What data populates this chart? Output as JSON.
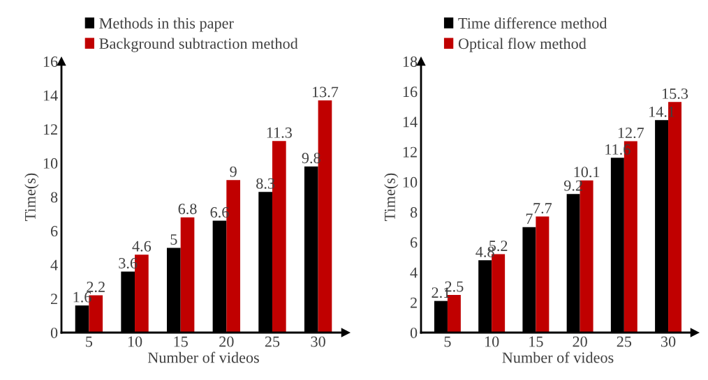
{
  "chart_data": [
    {
      "type": "bar",
      "xlabel": "Number of videos",
      "ylabel": "Time(s)",
      "categories": [
        "5",
        "10",
        "15",
        "20",
        "25",
        "30"
      ],
      "series": [
        {
          "name": "Methods in this paper",
          "color": "#000000",
          "values": [
            1.6,
            3.6,
            5,
            6.6,
            8.3,
            9.8
          ]
        },
        {
          "name": "Background subtraction method",
          "color": "#c00000",
          "values": [
            2.2,
            4.6,
            6.8,
            9,
            11.3,
            13.7
          ]
        }
      ],
      "ylim": [
        0,
        16
      ],
      "yticks": [
        0,
        2,
        4,
        6,
        8,
        10,
        12,
        14,
        16
      ],
      "data_labels": true,
      "legend": "top left",
      "grid": false
    },
    {
      "type": "bar",
      "xlabel": "Number of videos",
      "ylabel": "Time(s)",
      "categories": [
        "5",
        "10",
        "15",
        "20",
        "25",
        "30"
      ],
      "series": [
        {
          "name": "Time difference method",
          "color": "#000000",
          "values": [
            2.1,
            4.8,
            7,
            9.2,
            11.6,
            14.1
          ]
        },
        {
          "name": "Optical flow method",
          "color": "#c00000",
          "values": [
            2.5,
            5.2,
            7.7,
            10.1,
            12.7,
            15.3
          ]
        }
      ],
      "ylim": [
        0,
        18
      ],
      "yticks": [
        0,
        2,
        4,
        6,
        8,
        10,
        12,
        14,
        16,
        18
      ],
      "data_labels": true,
      "legend": "top left",
      "grid": false
    }
  ]
}
